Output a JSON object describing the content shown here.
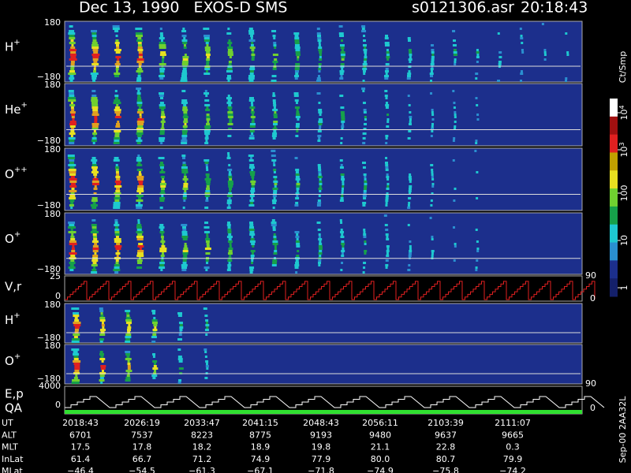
{
  "header": {
    "title": "Dec 13, 1990   EXOS-D SMS",
    "file": "s0121306.asr",
    "time": "20:18:43"
  },
  "panels": [
    {
      "label": "H",
      "charge": "+",
      "ytop": "180",
      "ybottom": "−180"
    },
    {
      "label": "He",
      "charge": "+",
      "ytop": "180",
      "ybottom": "−180"
    },
    {
      "label": "O",
      "charge": "++",
      "ytop": "180",
      "ybottom": "−180"
    },
    {
      "label": "O",
      "charge": "+",
      "ytop": "180",
      "ybottom": "−180"
    },
    {
      "label": "H",
      "charge": "+",
      "ytop": "180",
      "ybottom": "−180"
    },
    {
      "label": "O",
      "charge": "+",
      "ytop": "180",
      "ybottom": "−180"
    }
  ],
  "velocity_panel": {
    "label": "V,r",
    "ytop": "25",
    "ybottom": "0",
    "right_top": "90",
    "right_bottom": "0"
  },
  "energy_panel": {
    "label": "E,p",
    "label2": "QA",
    "ytop": "4000",
    "ybottom": "0",
    "right_top": "90",
    "right_bottom": "0"
  },
  "colorbar": {
    "unit": "Ct/Smp",
    "ticks": [
      {
        "base": "10",
        "exp": "4"
      },
      {
        "base": "10",
        "exp": "3"
      },
      "100",
      "10",
      "1"
    ]
  },
  "table": {
    "rows": [
      {
        "label": "UT",
        "values": [
          "2018:43",
          "2026:19",
          "2033:47",
          "2041:15",
          "2048:43",
          "2056:11",
          "2103:39",
          "2111:07"
        ]
      },
      {
        "label": "ALT",
        "values": [
          "6701",
          "7537",
          "8223",
          "8775",
          "9193",
          "9480",
          "9637",
          "9665"
        ]
      },
      {
        "label": "MLT",
        "values": [
          "17.5",
          "17.8",
          "18.2",
          "18.9",
          "19.8",
          "21.1",
          "22.8",
          "0.3"
        ]
      },
      {
        "label": "InLat",
        "values": [
          "61.4",
          "66.7",
          "71.2",
          "74.9",
          "77.9",
          "80.0",
          "80.7",
          "79.9"
        ]
      },
      {
        "label": "MLat",
        "values": [
          "−46.4",
          "−54.5",
          "−61.3",
          "−67.1",
          "−71.8",
          "−74.9",
          "−75.8",
          "−74.2"
        ]
      }
    ]
  },
  "footer": "Sep-00 2AA32L"
}
